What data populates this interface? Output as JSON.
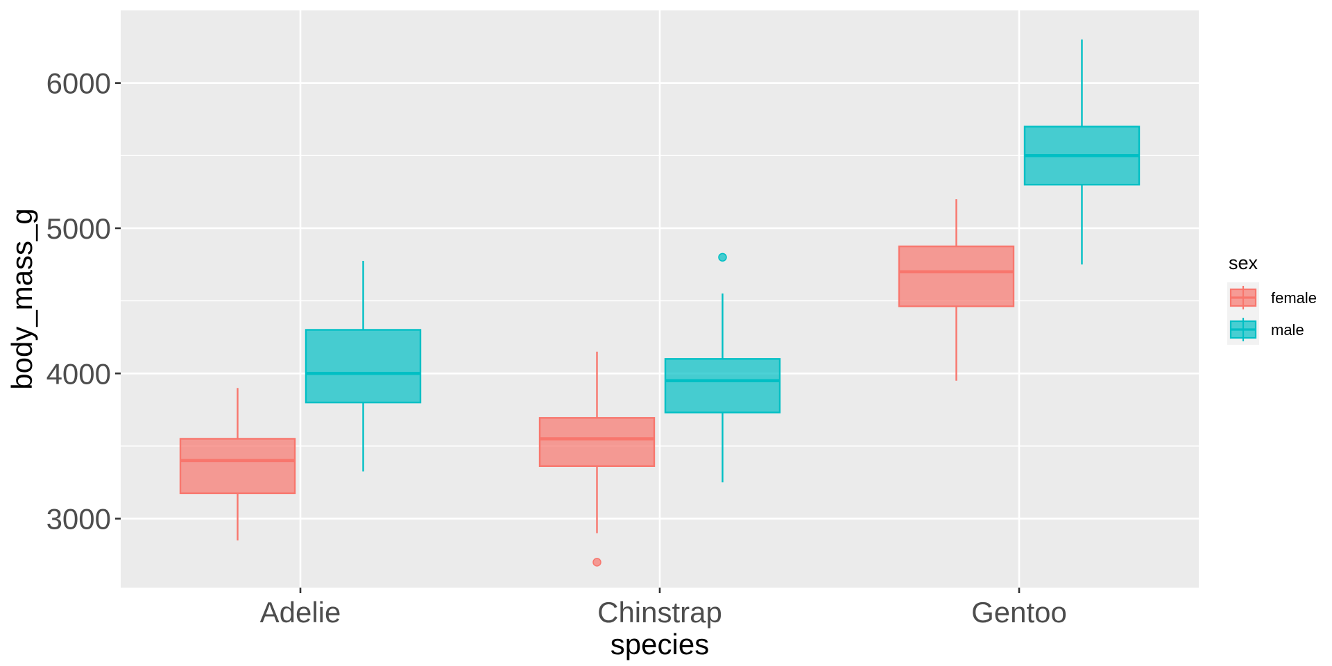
{
  "chart_data": {
    "type": "boxplot",
    "xlabel": "species",
    "ylabel": "body_mass_g",
    "categories": [
      "Adelie",
      "Chinstrap",
      "Gentoo"
    ],
    "ylim": [
      2525,
      6500
    ],
    "yticks": [
      3000,
      4000,
      5000,
      6000
    ],
    "grid": true,
    "legend": {
      "title": "sex",
      "position": "right"
    },
    "series": [
      {
        "name": "female",
        "color": "#F8766D",
        "boxes": [
          {
            "category": "Adelie",
            "whisker_low": 2850,
            "q1": 3175,
            "median": 3400,
            "q3": 3550,
            "whisker_high": 3900,
            "outliers": []
          },
          {
            "category": "Chinstrap",
            "whisker_low": 2900,
            "q1": 3362,
            "median": 3550,
            "q3": 3694,
            "whisker_high": 4150,
            "outliers": [
              2700
            ]
          },
          {
            "category": "Gentoo",
            "whisker_low": 3950,
            "q1": 4462,
            "median": 4700,
            "q3": 4875,
            "whisker_high": 5200,
            "outliers": []
          }
        ]
      },
      {
        "name": "male",
        "color": "#00BFC4",
        "boxes": [
          {
            "category": "Adelie",
            "whisker_low": 3325,
            "q1": 3800,
            "median": 4000,
            "q3": 4300,
            "whisker_high": 4775,
            "outliers": []
          },
          {
            "category": "Chinstrap",
            "whisker_low": 3250,
            "q1": 3731,
            "median": 3950,
            "q3": 4100,
            "whisker_high": 4550,
            "outliers": [
              4800
            ]
          },
          {
            "category": "Gentoo",
            "whisker_low": 4750,
            "q1": 5300,
            "median": 5500,
            "q3": 5700,
            "whisker_high": 6300,
            "outliers": []
          }
        ]
      }
    ]
  }
}
